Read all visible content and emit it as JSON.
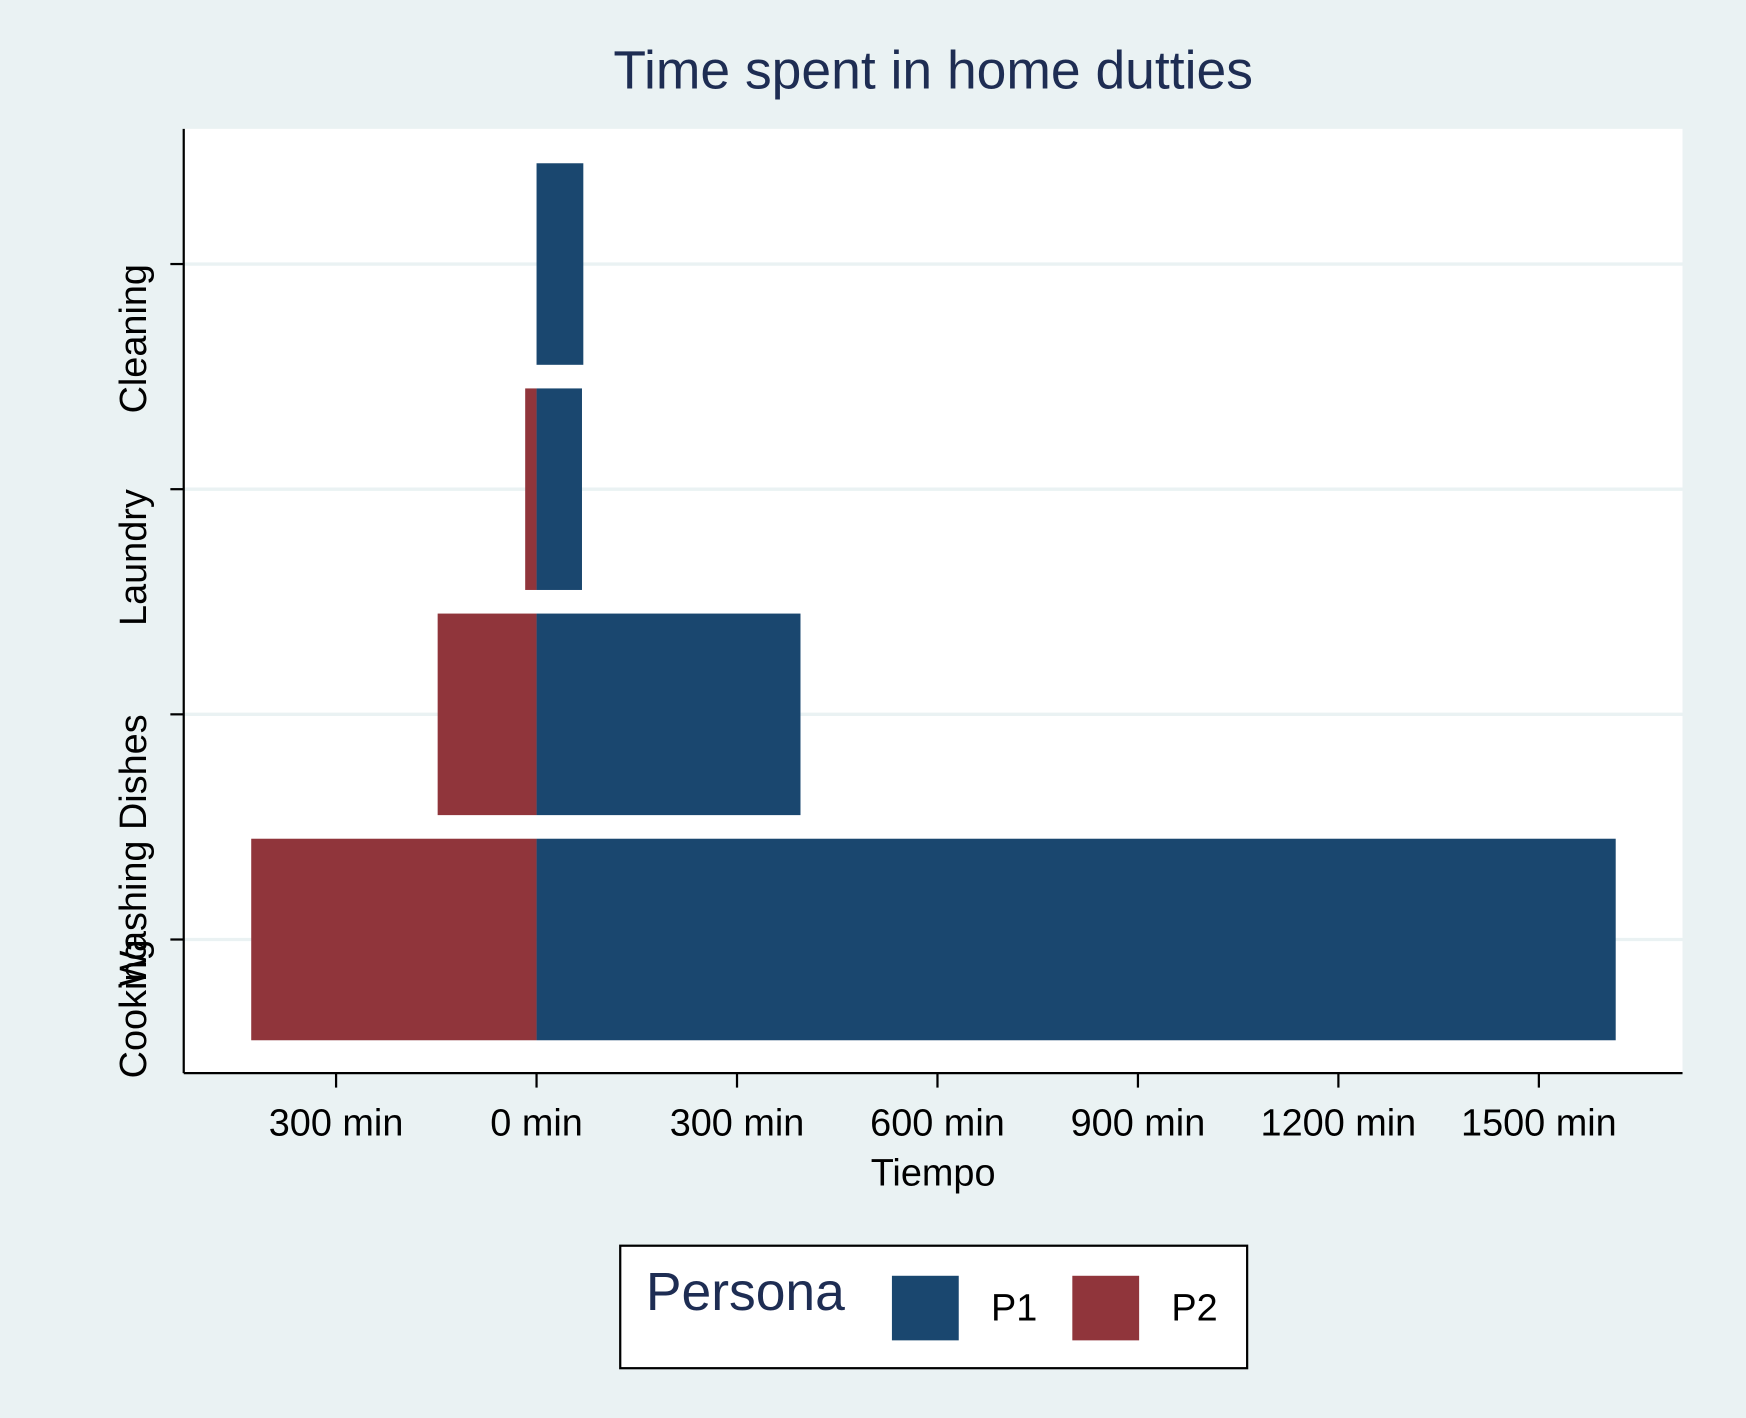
{
  "chart_data": {
    "type": "bar",
    "orientation": "horizontal",
    "title": "Time spent in home dutties",
    "x_label": "Tiempo",
    "categories": [
      "Cooking",
      "Washing Dishes",
      "Laundry",
      "Cleaning"
    ],
    "series": [
      {
        "name": "P1",
        "color": "#1a476f",
        "values": [
          1615,
          395,
          68,
          70
        ]
      },
      {
        "name": "P2",
        "color": "#90353b",
        "values": [
          -427,
          -148,
          -17,
          0
        ]
      }
    ],
    "xlim": [
      -528,
      1715
    ],
    "xticks": [
      {
        "value": -300,
        "label": "300 min"
      },
      {
        "value": 0,
        "label": "0 min"
      },
      {
        "value": 300,
        "label": "300 min"
      },
      {
        "value": 600,
        "label": "600 min"
      },
      {
        "value": 900,
        "label": "900 min"
      },
      {
        "value": 1200,
        "label": "1200 min"
      },
      {
        "value": 1500,
        "label": "1500 min"
      }
    ],
    "legend_title": "Persona",
    "legend_position": "bottom",
    "grid": true
  }
}
